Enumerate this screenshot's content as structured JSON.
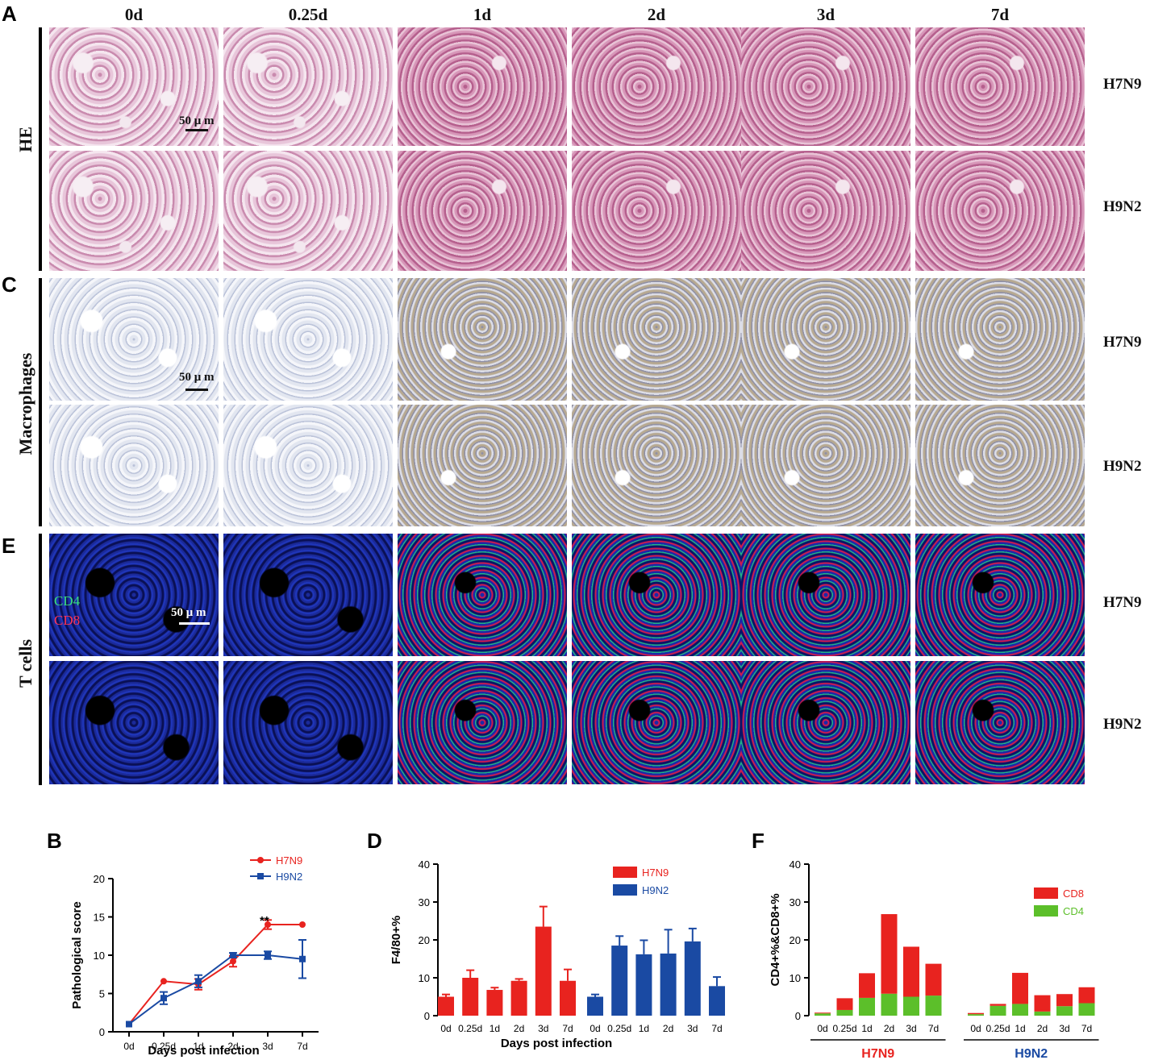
{
  "panels": {
    "A": "A",
    "B": "B",
    "C": "C",
    "D": "D",
    "E": "E",
    "F": "F"
  },
  "columns": [
    "0d",
    "0.25d",
    "1d",
    "2d",
    "3d",
    "7d"
  ],
  "rows": [
    "H7N9",
    "H9N2"
  ],
  "sections": {
    "he": "HE",
    "macrophages": "Macrophages",
    "tcells": "T cells"
  },
  "scalebar": "50 μ m",
  "tcell_legend": {
    "cd4": "CD4",
    "cd8": "CD8"
  },
  "colors": {
    "h7n9": "#e8231f",
    "h9n2": "#1a4aa3",
    "cd8": "#e8231f",
    "cd4": "#5cbf2a",
    "cd4_fluor": "#39e07a",
    "cd8_fluor": "#ff3355"
  },
  "chart_data": [
    {
      "panel": "B",
      "type": "line",
      "xlabel": "Days post infection",
      "ylabel": "Pathological score",
      "categories": [
        "0d",
        "0.25d",
        "1d",
        "2d",
        "3d",
        "7d"
      ],
      "ylim": [
        0,
        20
      ],
      "yticks": [
        0,
        5,
        10,
        15,
        20
      ],
      "series": [
        {
          "name": "H7N9",
          "values": [
            1,
            6.6,
            6.2,
            9.2,
            14,
            14
          ],
          "errors": [
            0,
            0,
            0.7,
            0.7,
            0.6,
            0
          ]
        },
        {
          "name": "H9N2",
          "values": [
            1,
            4.4,
            6.6,
            10,
            10,
            9.5
          ],
          "errors": [
            0,
            0.8,
            0.8,
            0.3,
            0.5,
            2.5
          ]
        }
      ],
      "annotation": "**",
      "legend": "top-right"
    },
    {
      "panel": "D",
      "type": "bar",
      "xlabel": "Days post infection",
      "ylabel": "F4/80+%",
      "categories": [
        "0d",
        "0.25d",
        "1d",
        "2d",
        "3d",
        "7d"
      ],
      "ylim": [
        0,
        40
      ],
      "yticks": [
        0,
        10,
        20,
        30,
        40
      ],
      "series": [
        {
          "name": "H7N9",
          "values": [
            5,
            10,
            6.8,
            9.2,
            23.5,
            9.2
          ],
          "errors": [
            0.6,
            2,
            0.6,
            0.5,
            5.3,
            3
          ]
        },
        {
          "name": "H9N2",
          "values": [
            5,
            18.5,
            16.2,
            16.4,
            19.6,
            7.8
          ],
          "errors": [
            0.6,
            2.5,
            3.7,
            6.3,
            3.4,
            2.4
          ]
        }
      ],
      "legend": "top-right"
    },
    {
      "panel": "F",
      "type": "bar",
      "stacked": true,
      "ylabel": "CD4+%&CD8+%",
      "categories": [
        "0d",
        "0.25d",
        "1d",
        "2d",
        "3d",
        "7d"
      ],
      "groups": [
        "H7N9",
        "H9N2"
      ],
      "ylim": [
        0,
        40
      ],
      "yticks": [
        0,
        10,
        20,
        30,
        40
      ],
      "series": [
        {
          "name": "CD4",
          "values_H7N9": [
            0.6,
            1.5,
            4.7,
            5.8,
            5,
            5.3
          ],
          "values_H9N2": [
            0.4,
            2.6,
            3.1,
            1.1,
            2.5,
            3.3
          ]
        },
        {
          "name": "CD8",
          "values_H7N9": [
            0.2,
            3.1,
            6.5,
            21,
            13.2,
            8.4
          ],
          "values_H9N2": [
            0.3,
            0.5,
            8.2,
            4.3,
            3.2,
            4.2
          ]
        }
      ],
      "legend": "top-right"
    }
  ]
}
